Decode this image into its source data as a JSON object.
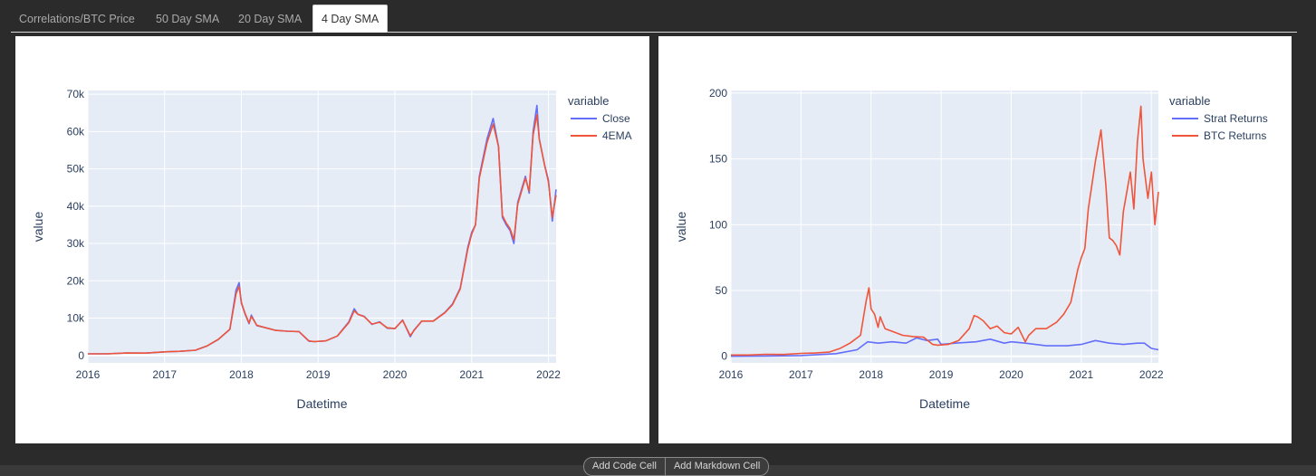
{
  "tabs": [
    {
      "label": "Correlations/BTC Price",
      "active": false
    },
    {
      "label": "50 Day SMA",
      "active": false
    },
    {
      "label": "20 Day SMA",
      "active": false
    },
    {
      "label": "4 Day SMA",
      "active": true
    }
  ],
  "cell_toolbar": {
    "add_code": "Add Code Cell",
    "add_markdown": "Add Markdown Cell"
  },
  "chart_data": [
    {
      "type": "line",
      "xlabel": "Datetime",
      "ylabel": "value",
      "legend_title": "variable",
      "legend_position": "right",
      "xlim": [
        2016.0,
        2022.1
      ],
      "ylim": [
        -2000,
        71000
      ],
      "x_ticks": [
        "2016",
        "2017",
        "2018",
        "2019",
        "2020",
        "2021",
        "2022"
      ],
      "y_ticks": [
        {
          "value": 0,
          "label": "0"
        },
        {
          "value": 10000,
          "label": "10k"
        },
        {
          "value": 20000,
          "label": "20k"
        },
        {
          "value": 30000,
          "label": "30k"
        },
        {
          "value": 40000,
          "label": "40k"
        },
        {
          "value": 50000,
          "label": "50k"
        },
        {
          "value": 60000,
          "label": "60k"
        },
        {
          "value": 70000,
          "label": "70k"
        }
      ],
      "grid": true,
      "series": [
        {
          "name": "Close",
          "color": "#636efa",
          "x": [
            2016.0,
            2016.25,
            2016.5,
            2016.75,
            2017.0,
            2017.2,
            2017.4,
            2017.55,
            2017.7,
            2017.85,
            2017.93,
            2017.97,
            2018.0,
            2018.05,
            2018.1,
            2018.13,
            2018.2,
            2018.3,
            2018.45,
            2018.6,
            2018.75,
            2018.88,
            2018.95,
            2019.1,
            2019.25,
            2019.4,
            2019.47,
            2019.52,
            2019.6,
            2019.7,
            2019.8,
            2019.9,
            2020.0,
            2020.1,
            2020.2,
            2020.25,
            2020.35,
            2020.5,
            2020.65,
            2020.75,
            2020.85,
            2020.95,
            2021.0,
            2021.05,
            2021.1,
            2021.2,
            2021.28,
            2021.35,
            2021.4,
            2021.45,
            2021.5,
            2021.55,
            2021.6,
            2021.7,
            2021.75,
            2021.8,
            2021.85,
            2021.88,
            2021.95,
            2022.0,
            2022.05,
            2022.1
          ],
          "y": [
            430,
            420,
            650,
            610,
            970,
            1100,
            1400,
            2500,
            4300,
            7000,
            17500,
            19500,
            14000,
            11000,
            8500,
            10800,
            8000,
            7500,
            6700,
            6500,
            6400,
            3800,
            3700,
            3900,
            5200,
            9000,
            12500,
            11000,
            10500,
            8300,
            9000,
            7300,
            7200,
            9500,
            5000,
            6800,
            9200,
            9200,
            11500,
            13800,
            18000,
            29000,
            33000,
            35000,
            48000,
            58000,
            63500,
            56000,
            37000,
            35000,
            33500,
            30000,
            41000,
            48000,
            43500,
            60000,
            67000,
            58000,
            51000,
            47000,
            36000,
            44500
          ]
        },
        {
          "name": "4EMA",
          "color": "#ef553b",
          "x": [
            2016.0,
            2016.25,
            2016.5,
            2016.75,
            2017.0,
            2017.2,
            2017.4,
            2017.55,
            2017.7,
            2017.85,
            2017.93,
            2017.97,
            2018.0,
            2018.05,
            2018.1,
            2018.13,
            2018.2,
            2018.3,
            2018.45,
            2018.6,
            2018.75,
            2018.88,
            2018.95,
            2019.1,
            2019.25,
            2019.4,
            2019.47,
            2019.52,
            2019.6,
            2019.7,
            2019.8,
            2019.9,
            2020.0,
            2020.1,
            2020.2,
            2020.25,
            2020.35,
            2020.5,
            2020.65,
            2020.75,
            2020.85,
            2020.95,
            2021.0,
            2021.05,
            2021.1,
            2021.2,
            2021.28,
            2021.35,
            2021.4,
            2021.45,
            2021.5,
            2021.55,
            2021.6,
            2021.7,
            2021.75,
            2021.8,
            2021.85,
            2021.88,
            2021.95,
            2022.0,
            2022.05,
            2022.1
          ],
          "y": [
            430,
            420,
            650,
            610,
            970,
            1100,
            1400,
            2500,
            4300,
            7000,
            16500,
            18500,
            14200,
            11200,
            8700,
            10500,
            8100,
            7500,
            6700,
            6500,
            6400,
            3900,
            3700,
            3900,
            5200,
            8800,
            12000,
            11000,
            10400,
            8400,
            8900,
            7400,
            7200,
            9400,
            5300,
            6700,
            9200,
            9200,
            11400,
            13600,
            17800,
            28500,
            32500,
            35000,
            47500,
            57000,
            62000,
            56000,
            37500,
            35500,
            34000,
            31000,
            40500,
            47500,
            44000,
            59000,
            64500,
            58000,
            51000,
            46500,
            37000,
            43000
          ]
        }
      ]
    },
    {
      "type": "line",
      "xlabel": "Datetime",
      "ylabel": "value",
      "legend_title": "variable",
      "legend_position": "right",
      "xlim": [
        2016.0,
        2022.1
      ],
      "ylim": [
        -5,
        202
      ],
      "x_ticks": [
        "2016",
        "2017",
        "2018",
        "2019",
        "2020",
        "2021",
        "2022"
      ],
      "y_ticks": [
        {
          "value": 0,
          "label": "0"
        },
        {
          "value": 50,
          "label": "50"
        },
        {
          "value": 100,
          "label": "100"
        },
        {
          "value": 150,
          "label": "150"
        },
        {
          "value": 200,
          "label": "200"
        }
      ],
      "grid": true,
      "series": [
        {
          "name": "Strat Returns",
          "color": "#636efa",
          "x": [
            2016.0,
            2016.5,
            2017.0,
            2017.5,
            2017.8,
            2017.95,
            2018.1,
            2018.3,
            2018.5,
            2018.65,
            2018.8,
            2018.95,
            2019.0,
            2019.2,
            2019.5,
            2019.7,
            2019.9,
            2020.0,
            2020.2,
            2020.5,
            2020.8,
            2021.0,
            2021.2,
            2021.4,
            2021.6,
            2021.8,
            2021.9,
            2022.0,
            2022.1
          ],
          "y": [
            0,
            0.2,
            0.6,
            2,
            5,
            11,
            10,
            11,
            10,
            14,
            12,
            13,
            9,
            10,
            11,
            13,
            10,
            11,
            10,
            8,
            8,
            9,
            12,
            10,
            9,
            10,
            10,
            6,
            5
          ]
        },
        {
          "name": "BTC Returns",
          "color": "#ef553b",
          "x": [
            2016.0,
            2016.25,
            2016.5,
            2016.75,
            2017.0,
            2017.2,
            2017.4,
            2017.55,
            2017.7,
            2017.85,
            2017.93,
            2017.97,
            2018.0,
            2018.05,
            2018.1,
            2018.13,
            2018.2,
            2018.3,
            2018.45,
            2018.6,
            2018.75,
            2018.88,
            2018.95,
            2019.1,
            2019.25,
            2019.4,
            2019.47,
            2019.52,
            2019.6,
            2019.7,
            2019.8,
            2019.9,
            2020.0,
            2020.1,
            2020.2,
            2020.25,
            2020.35,
            2020.5,
            2020.65,
            2020.75,
            2020.85,
            2020.95,
            2021.0,
            2021.05,
            2021.1,
            2021.2,
            2021.28,
            2021.35,
            2021.4,
            2021.45,
            2021.5,
            2021.55,
            2021.6,
            2021.7,
            2021.75,
            2021.8,
            2021.85,
            2021.88,
            2021.95,
            2022.0,
            2022.05,
            2022.1
          ],
          "y": [
            1,
            1,
            1.5,
            1.4,
            2.2,
            2.5,
            3.2,
            5.8,
            10,
            16,
            42,
            52,
            36,
            32,
            22,
            30,
            21,
            19,
            16,
            15,
            14.5,
            9,
            8.5,
            9,
            12,
            21,
            31,
            30,
            27,
            21,
            23,
            18,
            17,
            22,
            11,
            16,
            21,
            21,
            26,
            32,
            41,
            66,
            75,
            82,
            112,
            148,
            172,
            130,
            90,
            88,
            84,
            77,
            110,
            140,
            112,
            163,
            190,
            150,
            120,
            140,
            100,
            125
          ]
        }
      ]
    }
  ]
}
